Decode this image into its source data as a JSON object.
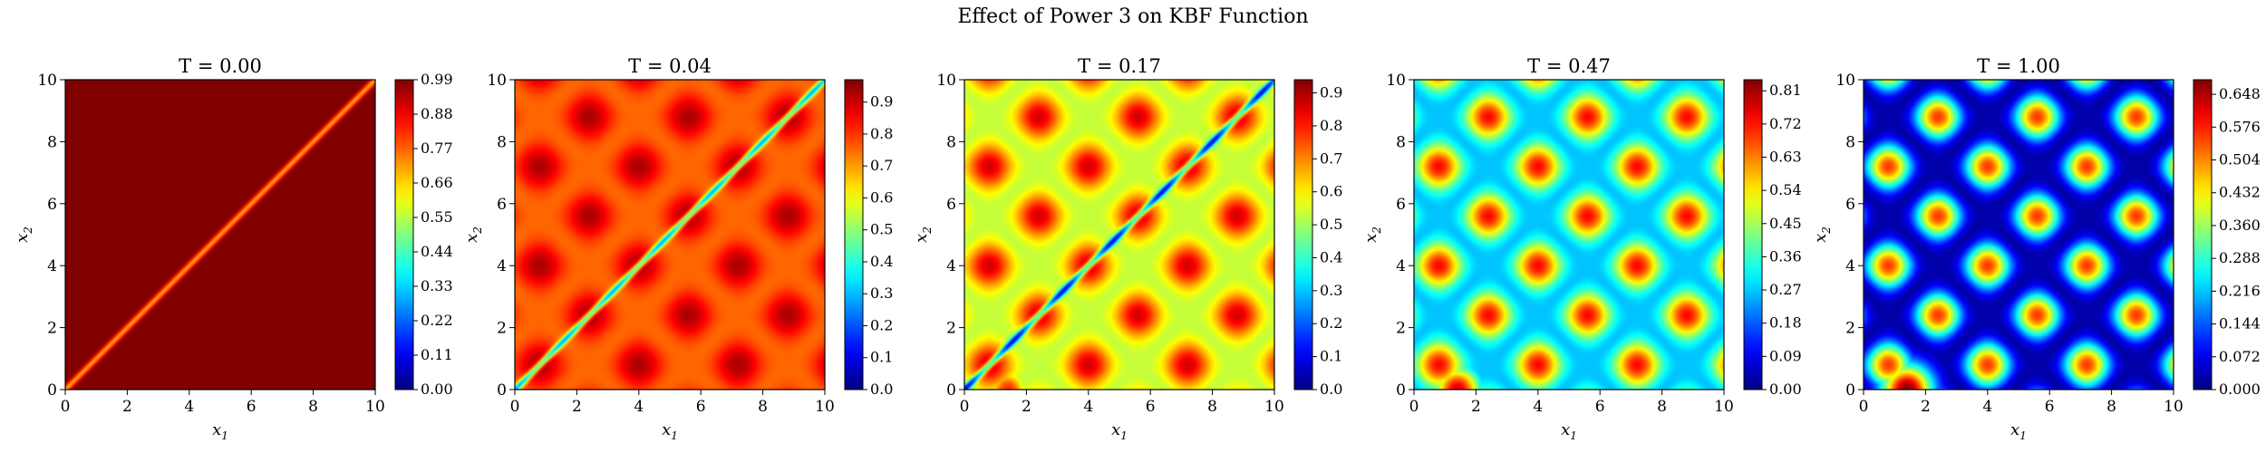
{
  "figure": {
    "suptitle": "Effect of Power 3 on KBF Function"
  },
  "colormap": "jet",
  "chart_data": [
    {
      "type": "heatmap",
      "title": "T = 0.00",
      "xlabel": "x1",
      "ylabel": "x2",
      "xlim": [
        0,
        10
      ],
      "ylim": [
        0,
        10
      ],
      "xticks": [
        "0",
        "2",
        "4",
        "6",
        "8",
        "10"
      ],
      "yticks": [
        "0",
        "2",
        "4",
        "6",
        "8",
        "10"
      ],
      "colorbar": {
        "min": 0.0,
        "max": 0.99,
        "ticks": [
          "0.00",
          "0.11",
          "0.22",
          "0.33",
          "0.44",
          "0.55",
          "0.66",
          "0.77",
          "0.88",
          "0.99"
        ]
      },
      "T": 0.0
    },
    {
      "type": "heatmap",
      "title": "T = 0.04",
      "xlabel": "x1",
      "ylabel": "x2",
      "xlim": [
        0,
        10
      ],
      "ylim": [
        0,
        10
      ],
      "xticks": [
        "0",
        "2",
        "4",
        "6",
        "8",
        "10"
      ],
      "yticks": [
        "0",
        "2",
        "4",
        "6",
        "8",
        "10"
      ],
      "colorbar": {
        "min": 0.0,
        "max": 0.97,
        "ticks": [
          "0.0",
          "0.1",
          "0.2",
          "0.3",
          "0.4",
          "0.5",
          "0.6",
          "0.7",
          "0.8",
          "0.9"
        ]
      },
      "T": 0.04
    },
    {
      "type": "heatmap",
      "title": "T = 0.17",
      "xlabel": "x1",
      "ylabel": "x2",
      "xlim": [
        0,
        10
      ],
      "ylim": [
        0,
        10
      ],
      "xticks": [
        "0",
        "2",
        "4",
        "6",
        "8",
        "10"
      ],
      "yticks": [
        "0",
        "2",
        "4",
        "6",
        "8",
        "10"
      ],
      "colorbar": {
        "min": 0.0,
        "max": 0.94,
        "ticks": [
          "0.0",
          "0.1",
          "0.2",
          "0.3",
          "0.4",
          "0.5",
          "0.6",
          "0.7",
          "0.8",
          "0.9"
        ]
      },
      "T": 0.17
    },
    {
      "type": "heatmap",
      "title": "T = 0.47",
      "xlabel": "x1",
      "ylabel": "x2",
      "xlim": [
        0,
        10
      ],
      "ylim": [
        0,
        10
      ],
      "xticks": [
        "0",
        "2",
        "4",
        "6",
        "8",
        "10"
      ],
      "yticks": [
        "0",
        "2",
        "4",
        "6",
        "8",
        "10"
      ],
      "colorbar": {
        "min": 0.0,
        "max": 0.84,
        "ticks": [
          "0.00",
          "0.09",
          "0.18",
          "0.27",
          "0.36",
          "0.45",
          "0.54",
          "0.63",
          "0.72",
          "0.81"
        ]
      },
      "T": 0.47
    },
    {
      "type": "heatmap",
      "title": "T = 1.00",
      "xlabel": "x1",
      "ylabel": "x2",
      "xlim": [
        0,
        10
      ],
      "ylim": [
        0,
        10
      ],
      "xticks": [
        "0",
        "2",
        "4",
        "6",
        "8",
        "10"
      ],
      "yticks": [
        "0",
        "2",
        "4",
        "6",
        "8",
        "10"
      ],
      "colorbar": {
        "min": 0.0,
        "max": 0.68,
        "ticks": [
          "0.000",
          "0.072",
          "0.144",
          "0.216",
          "0.288",
          "0.360",
          "0.432",
          "0.504",
          "0.576",
          "0.648"
        ]
      },
      "T": 1.0
    }
  ]
}
